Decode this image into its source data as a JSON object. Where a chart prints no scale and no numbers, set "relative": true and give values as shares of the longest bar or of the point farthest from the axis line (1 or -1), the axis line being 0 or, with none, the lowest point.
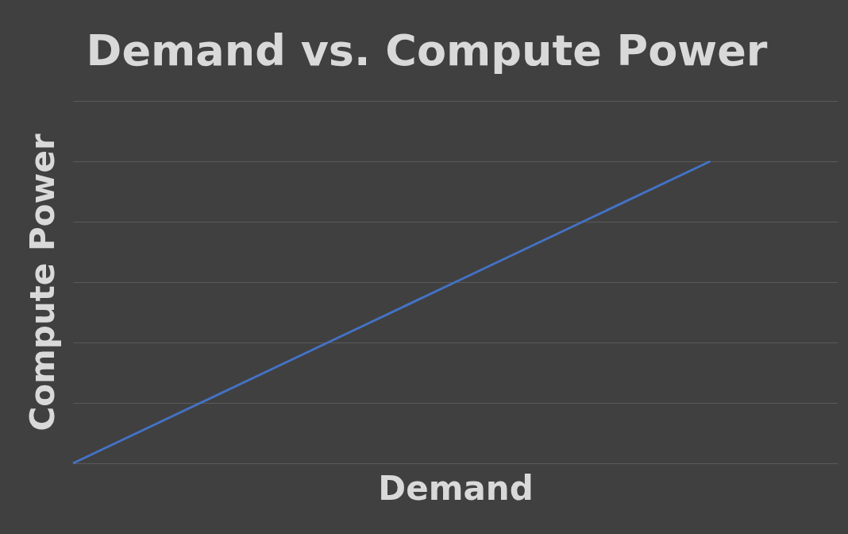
{
  "chart_data": {
    "type": "line",
    "title": "Demand vs. Compute Power",
    "xlabel": "Demand",
    "ylabel": "Compute Power",
    "categories": [
      null,
      null,
      null,
      null,
      null,
      null,
      null
    ],
    "series": [
      {
        "color": "#4472c4",
        "values": [
          0,
          0.2,
          0.4,
          0.6,
          0.8,
          1,
          null
        ]
      }
    ],
    "relative": true,
    "grid": "y",
    "legend": false,
    "marker": "none",
    "line_style": "solid"
  }
}
